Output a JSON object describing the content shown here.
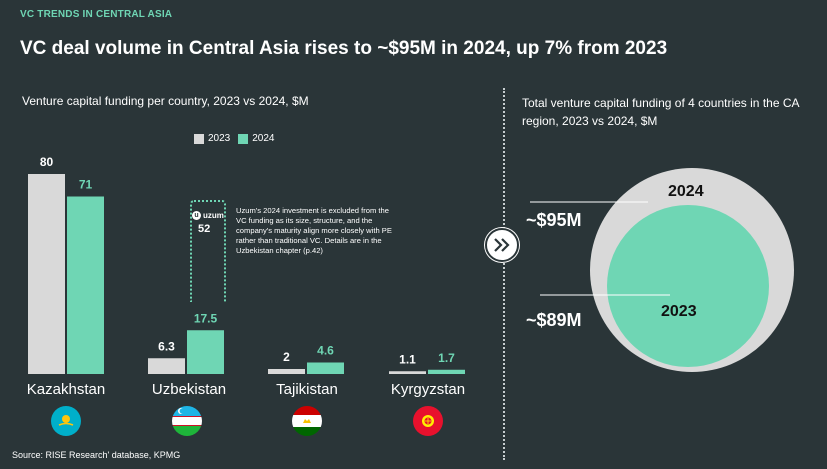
{
  "header": {
    "kicker": "VC TRENDS IN CENTRAL ASIA",
    "title": "VC deal volume in Central Asia rises to ~$95M in 2024, up 7% from 2023"
  },
  "left_subtitle": "Venture capital funding per country, 2023 vs 2024, $M",
  "right_subtitle": "Total venture capital funding of 4 countries in the CA region, 2023 vs 2024, $M",
  "legend": {
    "label_2023": "2023",
    "label_2024": "2024"
  },
  "colors": {
    "c2023": "#d9d9d9",
    "c2024": "#6fd6b4",
    "background": "#2a3538"
  },
  "uzum": {
    "logo_text": "uzum",
    "value": "52",
    "note": "Uzum's 2024 investment is excluded from the VC funding as its size, structure, and the company's maturity align more closely with PE rather than traditional VC. Details are in the Uzbekistan chapter (p.42)"
  },
  "totals": {
    "label_2024": "~$95M",
    "label_2023": "~$89M",
    "year_2024": "2024",
    "year_2023": "2023"
  },
  "source": "Source: RISE Research' database, KPMG",
  "chart_data": [
    {
      "type": "bar",
      "title": "Venture capital funding per country, 2023 vs 2024, $M",
      "categories": [
        "Kazakhstan",
        "Uzbekistan",
        "Tajikistan",
        "Kyrgyzstan"
      ],
      "series": [
        {
          "name": "2023",
          "values": [
            80,
            6.3,
            2,
            1.1
          ],
          "labels": [
            "80",
            "6.3",
            "2",
            "1.1"
          ]
        },
        {
          "name": "2024",
          "values": [
            71,
            17.5,
            4.6,
            1.7
          ],
          "labels": [
            "71",
            "17.5",
            "4.6",
            "1.7"
          ]
        }
      ],
      "legend": "top"
    },
    {
      "type": "area",
      "title": "Total venture capital funding of 4 countries in the CA region, 2023 vs 2024, $M",
      "categories": [
        "2024",
        "2023"
      ],
      "values": [
        95,
        89
      ]
    }
  ]
}
